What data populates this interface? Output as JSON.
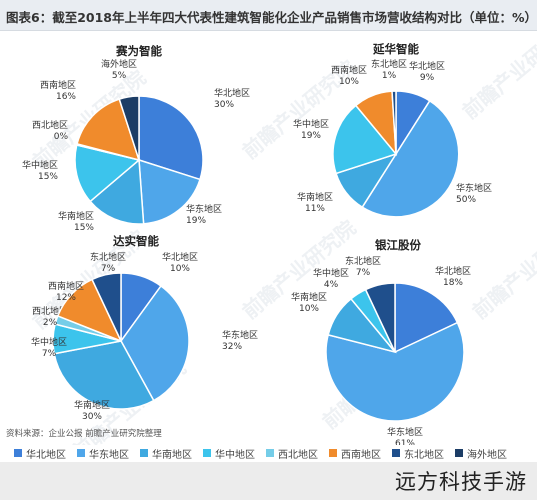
{
  "title": "图表6：截至2018年上半年四大代表性建筑智能化企业产品销售市场营收结构对比（单位：%）",
  "source": "资料来源：企业公报 前瞻产业研究院整理",
  "brand": "远方科技手游",
  "watermark": "前瞻产业研究院",
  "colors": {
    "华北地区": "#3d7fd9",
    "华东地区": "#4fa6ea",
    "华南地区": "#3fa9e0",
    "华中地区": "#3cc4ec",
    "西北地区": "#75cde8",
    "西南地区": "#f08b2c",
    "东北地区": "#1f4f8c",
    "海外地区": "#1c3d66"
  },
  "legend": [
    "华北地区",
    "华东地区",
    "华南地区",
    "华中地区",
    "西北地区",
    "西南地区",
    "东北地区",
    "海外地区"
  ],
  "chart_data": [
    {
      "type": "pie",
      "title": "赛为智能",
      "slices": [
        {
          "label": "华北地区",
          "value": 30,
          "display": "30%"
        },
        {
          "label": "华东地区",
          "value": 19,
          "display": "19%"
        },
        {
          "label": "华南地区",
          "value": 15,
          "display": "15%"
        },
        {
          "label": "华中地区",
          "value": 15,
          "display": "15%"
        },
        {
          "label": "西北地区",
          "value": 0.3,
          "display": "0%"
        },
        {
          "label": "西南地区",
          "value": 16,
          "display": "16%"
        },
        {
          "label": "海外地区",
          "value": 5,
          "display": "5%"
        }
      ]
    },
    {
      "type": "pie",
      "title": "延华智能",
      "slices": [
        {
          "label": "华北地区",
          "value": 9,
          "display": "9%"
        },
        {
          "label": "华东地区",
          "value": 50,
          "display": "50%"
        },
        {
          "label": "华南地区",
          "value": 11,
          "display": "11%"
        },
        {
          "label": "华中地区",
          "value": 19,
          "display": "19%"
        },
        {
          "label": "西南地区",
          "value": 10,
          "display": "10%"
        },
        {
          "label": "东北地区",
          "value": 1,
          "display": "1%"
        }
      ]
    },
    {
      "type": "pie",
      "title": "达实智能",
      "slices": [
        {
          "label": "华北地区",
          "value": 10,
          "display": "10%"
        },
        {
          "label": "华东地区",
          "value": 32,
          "display": "32%"
        },
        {
          "label": "华南地区",
          "value": 30,
          "display": "30%"
        },
        {
          "label": "华中地区",
          "value": 7,
          "display": "7%"
        },
        {
          "label": "西北地区",
          "value": 2,
          "display": "2%"
        },
        {
          "label": "西南地区",
          "value": 12,
          "display": "12%"
        },
        {
          "label": "东北地区",
          "value": 7,
          "display": "7%"
        }
      ]
    },
    {
      "type": "pie",
      "title": "银江股份",
      "slices": [
        {
          "label": "华北地区",
          "value": 18,
          "display": "18%"
        },
        {
          "label": "华东地区",
          "value": 61,
          "display": "61%"
        },
        {
          "label": "华南地区",
          "value": 10,
          "display": "10%"
        },
        {
          "label": "华中地区",
          "value": 4,
          "display": "4%"
        },
        {
          "label": "东北地区",
          "value": 7,
          "display": "7%"
        }
      ]
    }
  ]
}
